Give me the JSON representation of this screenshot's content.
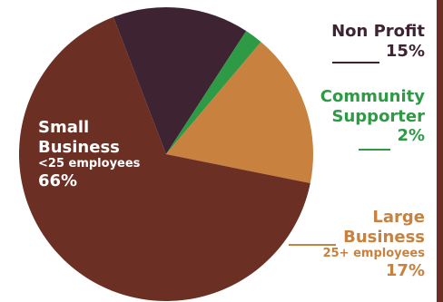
{
  "chart_data": {
    "type": "pie",
    "slices": [
      {
        "name": "Small Business",
        "sublabel": "<25 employees",
        "value": 66,
        "value_label": "66%",
        "color": "#6b2f24"
      },
      {
        "name": "Non Profit",
        "sublabel": "",
        "value": 15,
        "value_label": "15%",
        "color": "#3e2432"
      },
      {
        "name": "Community Supporter",
        "sublabel": "",
        "value": 2,
        "value_label": "2%",
        "color": "#2f9a45"
      },
      {
        "name": "Large Business",
        "sublabel": "25+ employees",
        "value": 17,
        "value_label": "17%",
        "color": "#c8813e"
      }
    ],
    "labels": {
      "small": {
        "line1": "Small",
        "line2": "Business",
        "sub": "<25 employees",
        "pct": "66%"
      },
      "nonprofit": {
        "line1": "Non Profit",
        "pct": "15%"
      },
      "community": {
        "line1": "Community",
        "line2": "Supporter",
        "pct": "2%"
      },
      "large": {
        "line1": "Large",
        "line2": "Business",
        "sub": "25+ employees",
        "pct": "17%"
      }
    },
    "legend": "none"
  }
}
